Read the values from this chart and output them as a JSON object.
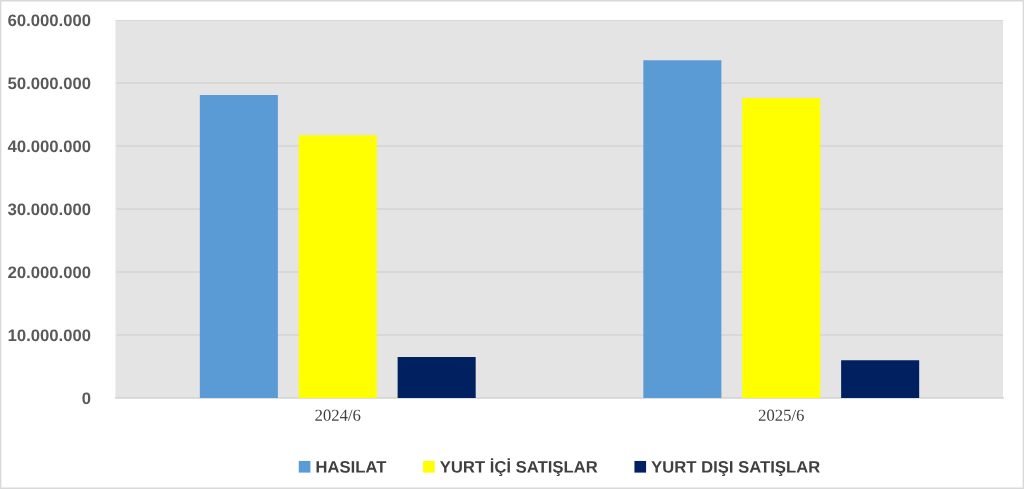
{
  "chart_data": {
    "type": "bar",
    "categories": [
      "2024/6",
      "2025/6"
    ],
    "series": [
      {
        "name": "HASILAT",
        "color": "#5b9bd5",
        "values": [
          48100000,
          53600000
        ]
      },
      {
        "name": "YURT İÇİ SATIŞLAR",
        "color": "#ffff00",
        "values": [
          41700000,
          47600000
        ]
      },
      {
        "name": "YURT DIŞI SATIŞLAR",
        "color": "#002060",
        "values": [
          6500000,
          6000000
        ]
      }
    ],
    "ylim": [
      0,
      60000000
    ],
    "yticks": [
      {
        "value": 0,
        "label": "0"
      },
      {
        "value": 10000000,
        "label": "10.000.000"
      },
      {
        "value": 20000000,
        "label": "20.000.000"
      },
      {
        "value": 30000000,
        "label": "30.000.000"
      },
      {
        "value": 40000000,
        "label": "40.000.000"
      },
      {
        "value": 50000000,
        "label": "50.000.000"
      },
      {
        "value": 60000000,
        "label": "60.000.000"
      }
    ],
    "grid": "y",
    "legend": "bottom"
  }
}
